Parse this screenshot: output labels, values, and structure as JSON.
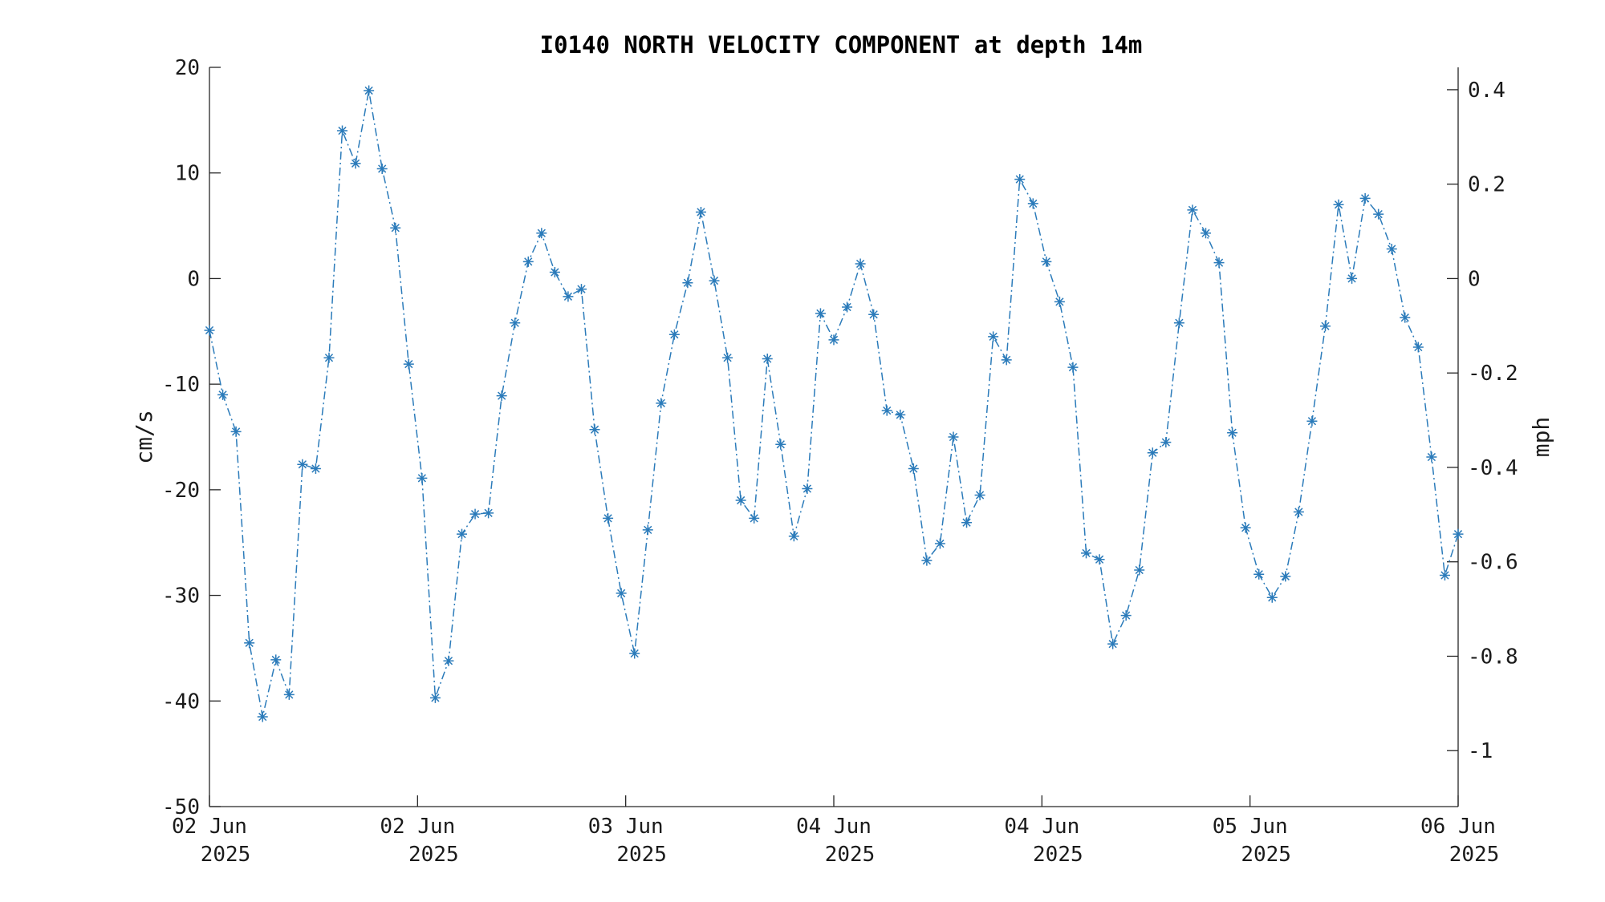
{
  "chart_data": {
    "type": "line",
    "title": "I0140 NORTH VELOCITY COMPONENT at depth 14m",
    "ylabel": "cm/s",
    "ylabel_right": "mph",
    "ylim": [
      -50,
      20
    ],
    "yticks": [
      "20",
      "10",
      "0",
      "-10",
      "-20",
      "-30",
      "-40",
      "-50"
    ],
    "yticks_right": [
      "0.4",
      "0.2",
      "0",
      "-0.2",
      "-0.4",
      "-0.6",
      "-0.8",
      "-1"
    ],
    "xticks": [
      {
        "day": "02 Jun",
        "year": "2025"
      },
      {
        "day": "02 Jun",
        "year": "2025"
      },
      {
        "day": "03 Jun",
        "year": "2025"
      },
      {
        "day": "04 Jun",
        "year": "2025"
      },
      {
        "day": "04 Jun",
        "year": "2025"
      },
      {
        "day": "05 Jun",
        "year": "2025"
      },
      {
        "day": "06 Jun",
        "year": "2025"
      }
    ],
    "line_style": "dash-dot",
    "marker": "asterisk",
    "grid": false,
    "legend": "none",
    "color": "#2b7bba",
    "series": [
      {
        "values": [
          -4.9,
          -11.0,
          -14.5,
          -34.5,
          -41.5,
          -36.1,
          -39.4,
          -17.6,
          -18.0,
          -7.5,
          14.0,
          10.9,
          17.8,
          10.4,
          4.8,
          -8.1,
          -18.9,
          -39.7,
          -36.2,
          -24.2,
          -22.3,
          -22.2,
          -11.1,
          -4.2,
          1.6,
          4.3,
          0.6,
          -1.7,
          -1.0,
          -14.3,
          -22.7,
          -29.8,
          -35.5,
          -23.8,
          -11.8,
          -5.3,
          -0.4,
          6.3,
          -0.2,
          -7.5,
          -21.0,
          -22.7,
          -7.6,
          -15.7,
          -24.4,
          -19.9,
          -3.3,
          -5.8,
          -2.7,
          1.4,
          -3.4,
          -12.5,
          -12.9,
          -18.0,
          -26.7,
          -25.1,
          -15.0,
          -23.1,
          -20.5,
          -5.5,
          -7.7,
          9.4,
          7.1,
          1.6,
          -2.2,
          -8.4,
          -26.0,
          -26.6,
          -34.6,
          -31.9,
          -27.6,
          -16.5,
          -15.5,
          -4.2,
          6.5,
          4.3,
          1.5,
          -14.6,
          -23.6,
          -28.0,
          -30.2,
          -28.2,
          -22.1,
          -13.5,
          -4.5,
          7.0,
          0.0,
          7.6,
          6.1,
          2.8,
          -3.7,
          -6.5,
          -16.9,
          -28.1,
          -24.2
        ]
      }
    ]
  }
}
